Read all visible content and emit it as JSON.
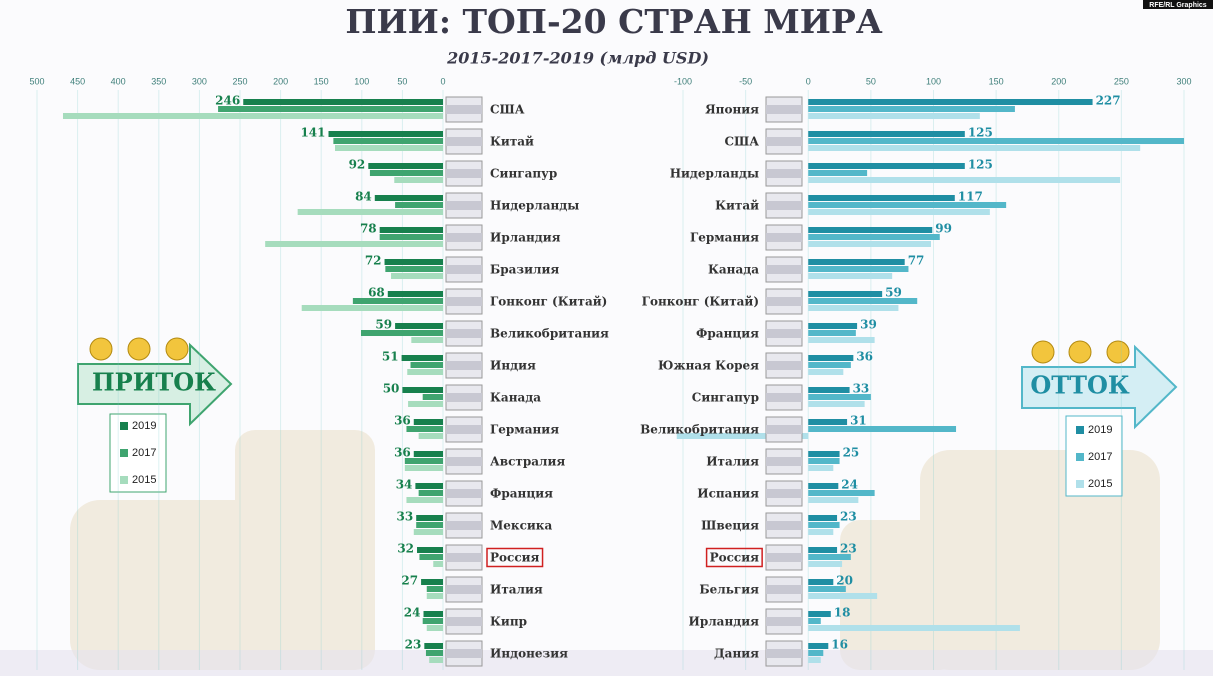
{
  "title": "ПИИ: ТОП-20 СТРАН МИРА",
  "subtitle": "2015-2017-2019 (млрд USD)",
  "credit": "RFE/RL Graphics",
  "chart_data": [
    {
      "type": "bar",
      "orientation": "horizontal",
      "label": "ПРИТОК",
      "categories": [
        "США",
        "Китай",
        "Сингапур",
        "Нидерланды",
        "Ирландия",
        "Бразилия",
        "Гонконг (Китай)",
        "Великобритания",
        "Индия",
        "Канада",
        "Германия",
        "Австралия",
        "Франция",
        "Мексика",
        "Россия",
        "Италия",
        "Кипр",
        "Индонезия"
      ],
      "highlight_index": 14,
      "series": [
        {
          "name": "2019",
          "color": "#17804d",
          "values": [
            246,
            141,
            92,
            84,
            78,
            72,
            68,
            59,
            51,
            50,
            36,
            36,
            34,
            33,
            32,
            27,
            24,
            23
          ]
        },
        {
          "name": "2017",
          "color": "#3fa46f",
          "values": [
            277,
            135,
            90,
            59,
            78,
            71,
            111,
            101,
            40,
            25,
            45,
            47,
            30,
            33,
            29,
            20,
            25,
            21
          ]
        },
        {
          "name": "2015",
          "color": "#a6dcbd",
          "values": [
            468,
            133,
            60,
            179,
            219,
            64,
            174,
            39,
            44,
            43,
            30,
            47,
            45,
            36,
            12,
            20,
            20,
            17
          ]
        }
      ],
      "xlim": [
        500,
        0
      ],
      "xticks": [
        500,
        450,
        400,
        350,
        300,
        250,
        200,
        150,
        100,
        50,
        0
      ],
      "grid": true
    },
    {
      "type": "bar",
      "orientation": "horizontal",
      "label": "ОТТОК",
      "categories": [
        "Япония",
        "США",
        "Нидерланды",
        "Китай",
        "Германия",
        "Канада",
        "Гонконг (Китай)",
        "Франция",
        "Южная Корея",
        "Сингапур",
        "Великобритания",
        "Италия",
        "Испания",
        "Швеция",
        "Россия",
        "Бельгия",
        "Ирландия",
        "Дания"
      ],
      "highlight_index": 14,
      "series": [
        {
          "name": "2019",
          "color": "#1f8ea3",
          "values": [
            227,
            125,
            125,
            117,
            99,
            77,
            59,
            39,
            36,
            33,
            31,
            25,
            24,
            23,
            23,
            20,
            18,
            16
          ]
        },
        {
          "name": "2017",
          "color": "#53b7c9",
          "values": [
            165,
            300,
            47,
            158,
            105,
            80,
            87,
            38,
            34,
            50,
            118,
            25,
            53,
            25,
            34,
            30,
            10,
            12
          ]
        },
        {
          "name": "2015",
          "color": "#b0e0ea",
          "values": [
            137,
            265,
            249,
            145,
            98,
            67,
            72,
            53,
            28,
            45,
            -105,
            20,
            40,
            20,
            27,
            55,
            169,
            10
          ]
        }
      ],
      "xlim": [
        -100,
        300
      ],
      "xticks": [
        -100,
        -50,
        0,
        50,
        100,
        150,
        200,
        250,
        300
      ],
      "grid": true
    }
  ]
}
